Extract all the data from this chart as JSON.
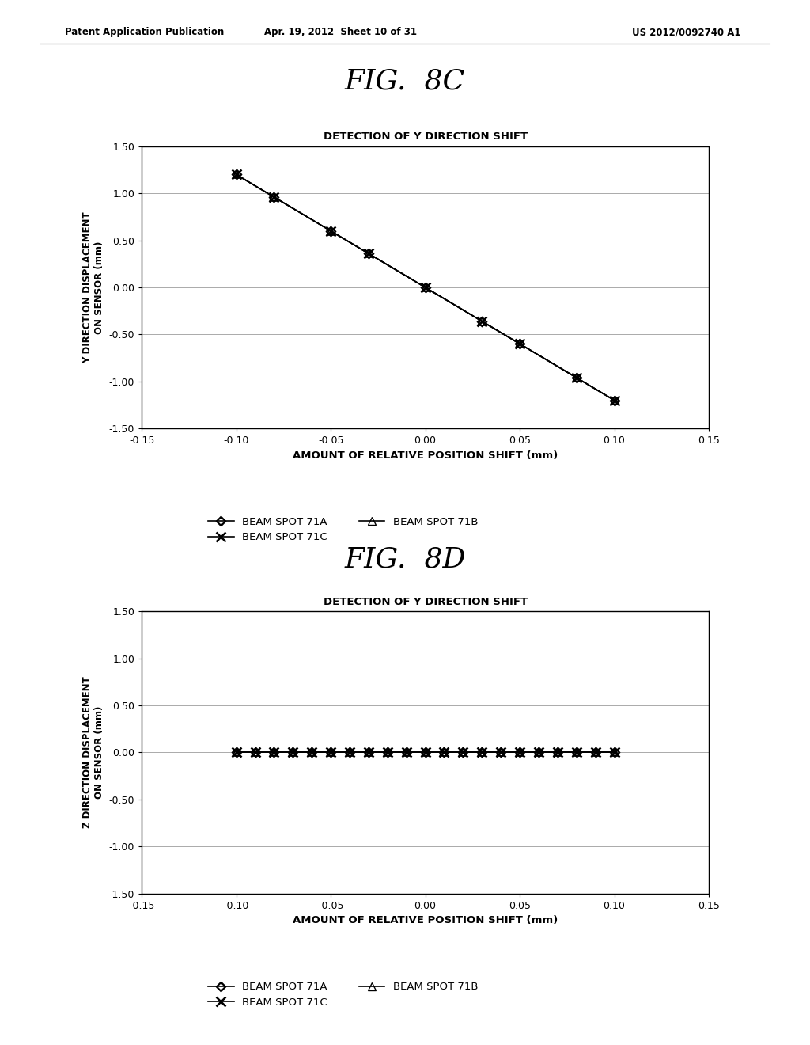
{
  "fig_title_1": "FIG.  8C",
  "fig_title_2": "FIG.  8D",
  "chart_title": "DETECTION OF Y DIRECTION SHIFT",
  "ylabel_1": "Y DIRECTION DISPLACEMENT\nON SENSOR (mm)",
  "ylabel_2": "Z DIRECTION DISPLACEMENT\nON SENSOR (mm)",
  "xlabel": "AMOUNT OF RELATIVE POSITION SHIFT (mm)",
  "xlim": [
    -0.15,
    0.15
  ],
  "ylim": [
    -1.5,
    1.5
  ],
  "xticks": [
    -0.15,
    -0.1,
    -0.05,
    0.0,
    0.05,
    0.1,
    0.15
  ],
  "yticks": [
    -1.5,
    -1.0,
    -0.5,
    0.0,
    0.5,
    1.0,
    1.5
  ],
  "x_8C": [
    -0.1,
    -0.08,
    -0.05,
    -0.03,
    0.0,
    0.03,
    0.05,
    0.08,
    0.1
  ],
  "x_8D": [
    -0.1,
    -0.09,
    -0.08,
    -0.07,
    -0.06,
    -0.05,
    -0.04,
    -0.03,
    -0.02,
    -0.01,
    0.0,
    0.01,
    0.02,
    0.03,
    0.04,
    0.05,
    0.06,
    0.07,
    0.08,
    0.09,
    0.1
  ],
  "background_color": "#ffffff",
  "patent_header_left": "Patent Application Publication",
  "patent_header_mid": "Apr. 19, 2012  Sheet 10 of 31",
  "patent_header_right": "US 2012/0092740 A1",
  "legend_71A": "BEAM SPOT 71A",
  "legend_71B": "BEAM SPOT 71B",
  "legend_71C": "BEAM SPOT 71C"
}
